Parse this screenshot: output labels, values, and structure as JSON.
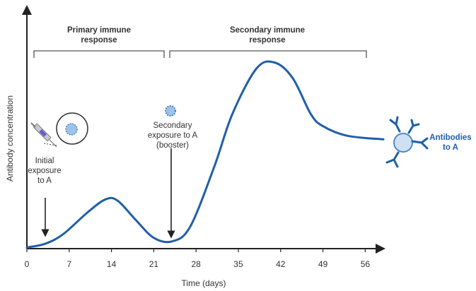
{
  "chart_data": {
    "type": "line",
    "primary_label": "Primary immune response",
    "secondary_label": "Secondary immune response",
    "x_label": "Time (days)",
    "y_label": "Antibody concentration",
    "initial_note": "Initial exposure to A",
    "booster_note": "Secondary exposure to A (booster)",
    "antibody_note": "Antibodies to A",
    "x": [
      0,
      3,
      6,
      10,
      13,
      15,
      18,
      21,
      24,
      27,
      31,
      34,
      38,
      41,
      44,
      47,
      49,
      53,
      59
    ],
    "series": [
      {
        "name": "Antibodies to A",
        "color": "#1f5fa8",
        "values": [
          0.5,
          2,
          6,
          15,
          20.5,
          20,
          12,
          4.5,
          3,
          9,
          34,
          56,
          75,
          77.5,
          71,
          56,
          51,
          47,
          45.5
        ]
      }
    ],
    "xlim": [
      0,
      59
    ],
    "xticks": [
      0,
      7,
      14,
      21,
      28,
      35,
      42,
      49,
      56
    ],
    "ylim": [
      0,
      100
    ]
  }
}
